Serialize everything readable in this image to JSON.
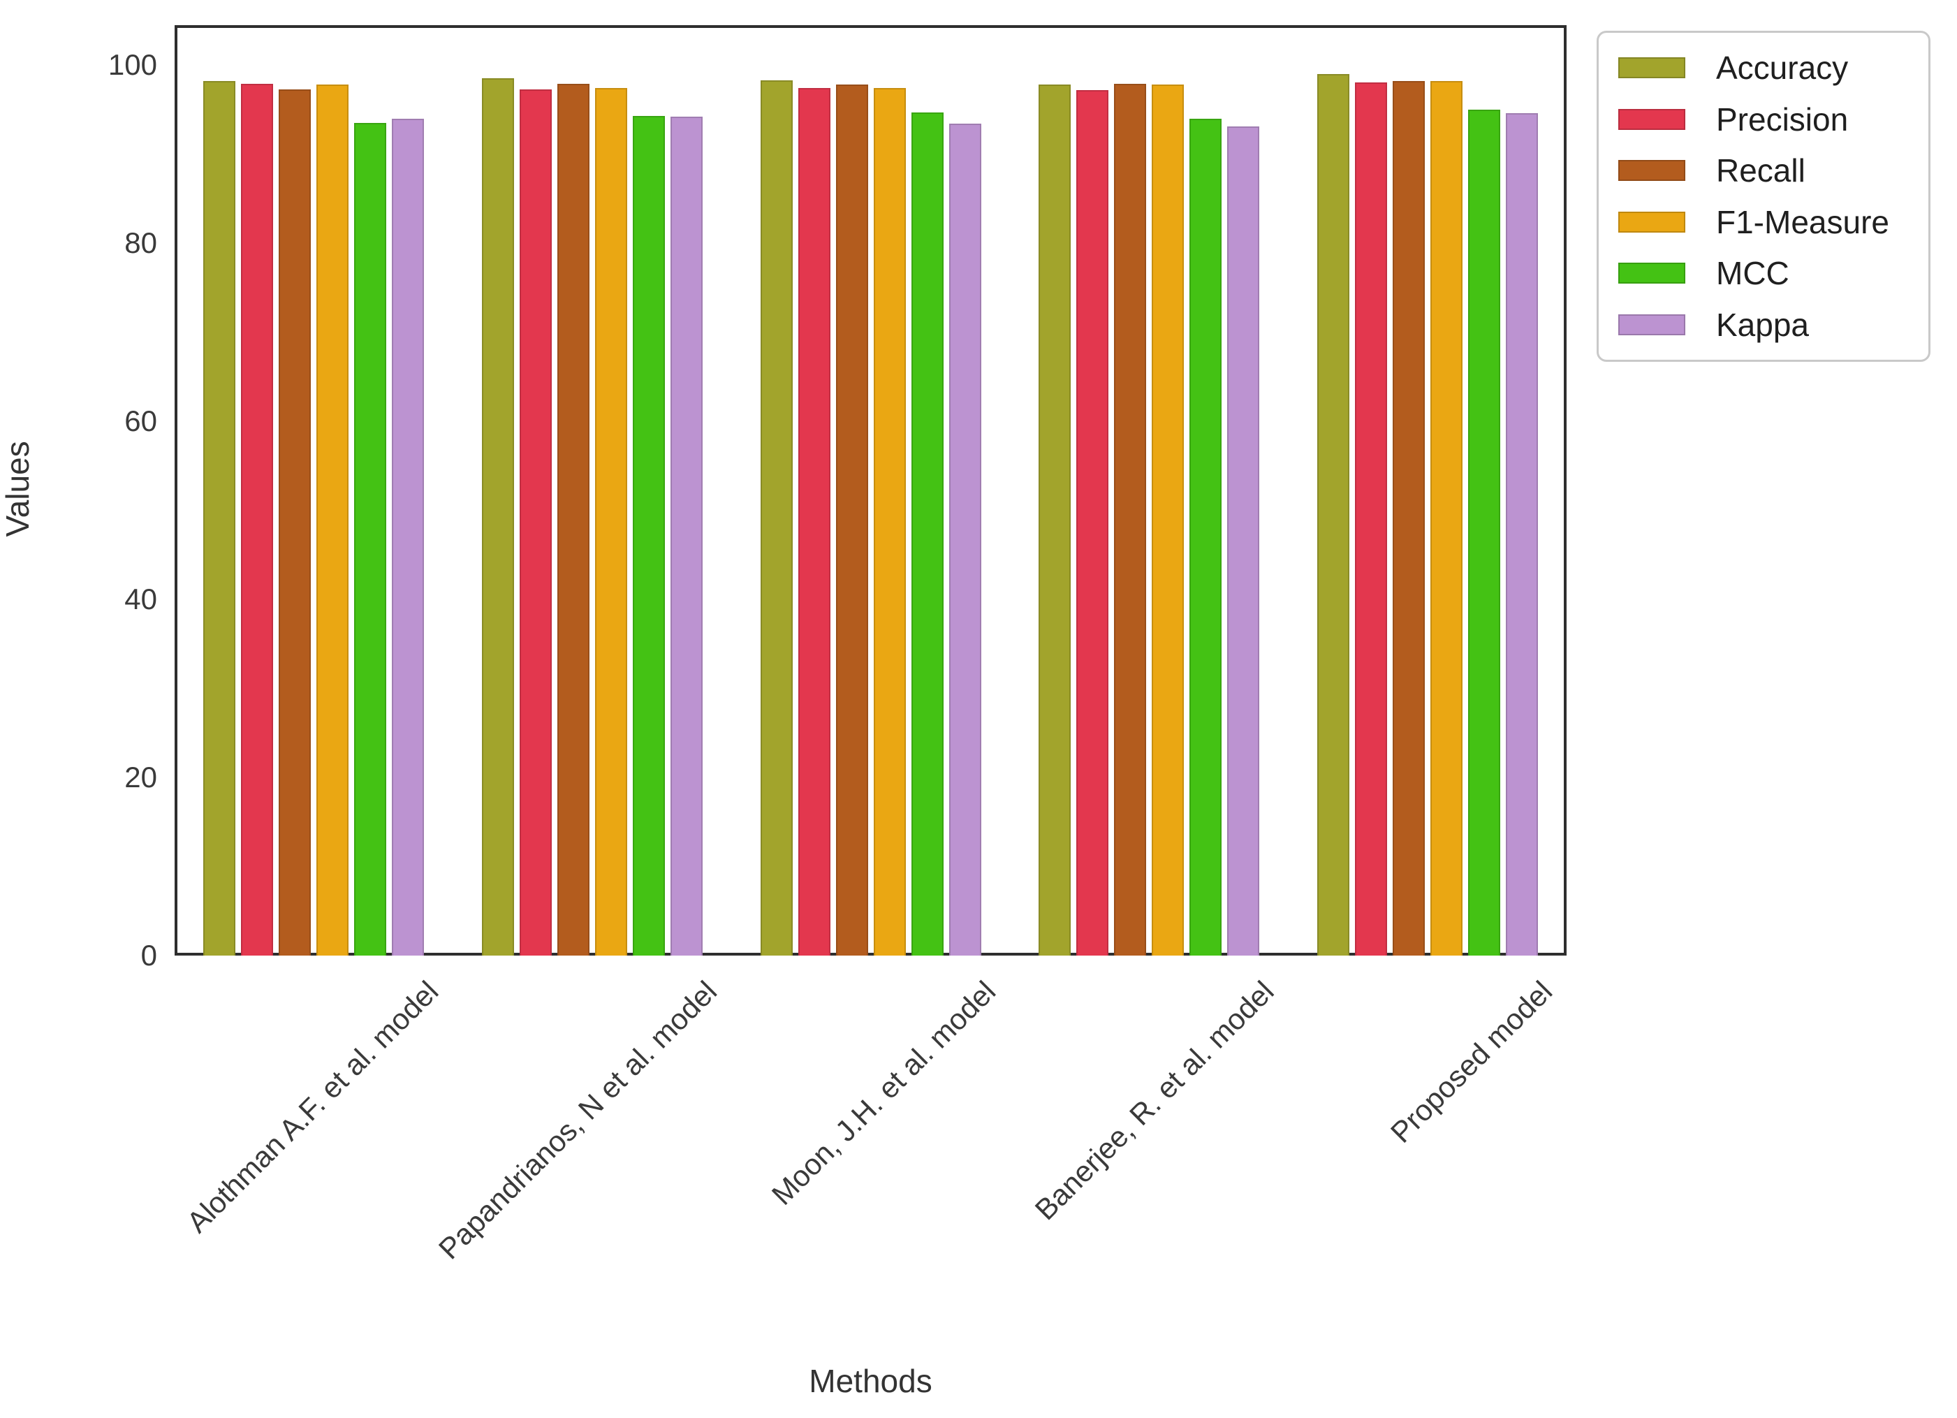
{
  "chart_data": {
    "type": "bar",
    "title": "",
    "xlabel": "Methods",
    "ylabel": "Values",
    "ylim": [
      0,
      104.5
    ],
    "yticks": [
      0,
      20,
      40,
      60,
      80,
      100
    ],
    "grid": false,
    "legend_position": "upper-right-outside",
    "categories": [
      "Alothman A.F. et al. model",
      "Papandrianos, N et al. model",
      "Moon, J.H. et al. model",
      "Banerjee, R. et al. model",
      "Proposed model"
    ],
    "series": [
      {
        "name": "Accuracy",
        "color": "#a2a42c",
        "values": [
          98.2,
          98.5,
          98.3,
          97.8,
          99.0
        ]
      },
      {
        "name": "Precision",
        "color": "#e3374e",
        "values": [
          97.9,
          97.3,
          97.4,
          97.2,
          98.1
        ]
      },
      {
        "name": "Recall",
        "color": "#b35c1e",
        "values": [
          97.3,
          97.9,
          97.8,
          97.9,
          98.2
        ]
      },
      {
        "name": "F1-Measure",
        "color": "#eaa713",
        "values": [
          97.8,
          97.4,
          97.4,
          97.8,
          98.2
        ]
      },
      {
        "name": "MCC",
        "color": "#44c214",
        "values": [
          93.5,
          94.3,
          94.7,
          94.0,
          95.0
        ]
      },
      {
        "name": "Kappa",
        "color": "#bc93d1",
        "values": [
          94.0,
          94.2,
          93.4,
          93.1,
          94.6
        ]
      }
    ]
  }
}
